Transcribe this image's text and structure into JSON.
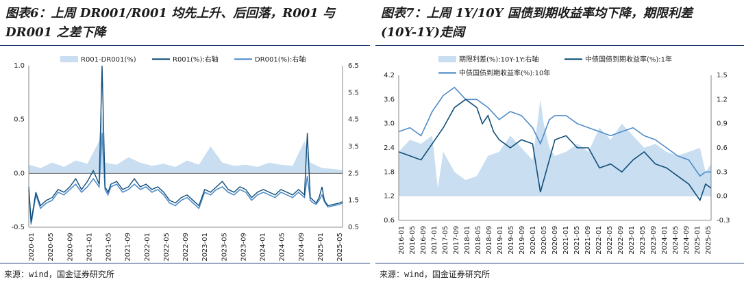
{
  "left": {
    "title_line1": "图表6：上周 DR001/R001 均先上升、后回落，R001 与",
    "title_line2": "DR001 之差下降",
    "source": "来源：wind，国金证券研究所",
    "colors": {
      "spread": "#c9def0",
      "r001": "#0f4d78",
      "dr001": "#4f8cc8"
    },
    "chart_data": {
      "type": "area",
      "series": [
        {
          "name": "R001-DR001(%)",
          "kind": "area",
          "axis": "left"
        },
        {
          "name": "R001(%):右轴",
          "kind": "line",
          "axis": "right"
        },
        {
          "name": "DR001(%):右轴",
          "kind": "line",
          "axis": "right"
        }
      ],
      "x_ticks": [
        "2020-01",
        "2020-05",
        "2020-09",
        "2021-01",
        "2021-05",
        "2021-09",
        "2022-01",
        "2022-05",
        "2022-09",
        "2023-01",
        "2023-05",
        "2023-09",
        "2024-01",
        "2024-05",
        "2024-09",
        "2025-01",
        "2025-05"
      ],
      "y_left": {
        "min": -0.5,
        "max": 1.0,
        "ticks": [
          "1.0",
          "0.5",
          "0.0",
          "-0.5"
        ]
      },
      "y_right": {
        "min": 0.5,
        "max": 6.5,
        "ticks": [
          "6.5",
          "5.5",
          "4.5",
          "3.5",
          "2.5",
          "1.5",
          "0.5"
        ]
      },
      "r001_points": [
        [
          0,
          2.0
        ],
        [
          0.4,
          0.7
        ],
        [
          1.2,
          1.8
        ],
        [
          2,
          1.3
        ],
        [
          3,
          1.5
        ],
        [
          4,
          1.6
        ],
        [
          5,
          1.9
        ],
        [
          6,
          1.8
        ],
        [
          7,
          2.0
        ],
        [
          8,
          2.3
        ],
        [
          9,
          1.9
        ],
        [
          10,
          2.2
        ],
        [
          11,
          2.6
        ],
        [
          12,
          2.1
        ],
        [
          12.5,
          6.5
        ],
        [
          13,
          2.0
        ],
        [
          13.5,
          1.8
        ],
        [
          14,
          2.1
        ],
        [
          15,
          2.2
        ],
        [
          16,
          1.9
        ],
        [
          17,
          2.0
        ],
        [
          18,
          2.3
        ],
        [
          19,
          2.0
        ],
        [
          20,
          2.1
        ],
        [
          21,
          1.9
        ],
        [
          22,
          2.0
        ],
        [
          23,
          1.8
        ],
        [
          24,
          1.5
        ],
        [
          25,
          1.4
        ],
        [
          26,
          1.6
        ],
        [
          27,
          1.7
        ],
        [
          28,
          1.5
        ],
        [
          29,
          1.3
        ],
        [
          30,
          1.9
        ],
        [
          31,
          1.8
        ],
        [
          32,
          2.0
        ],
        [
          33,
          2.2
        ],
        [
          34,
          1.9
        ],
        [
          35,
          1.8
        ],
        [
          36,
          2.0
        ],
        [
          37,
          1.9
        ],
        [
          38,
          1.6
        ],
        [
          39,
          1.8
        ],
        [
          40,
          1.9
        ],
        [
          41,
          1.8
        ],
        [
          42,
          1.7
        ],
        [
          43,
          1.9
        ],
        [
          44,
          1.8
        ],
        [
          45,
          1.7
        ],
        [
          46,
          1.9
        ],
        [
          47,
          1.7
        ],
        [
          47.5,
          4.0
        ],
        [
          48,
          1.6
        ],
        [
          48.5,
          1.5
        ],
        [
          49,
          1.4
        ],
        [
          49.5,
          1.6
        ],
        [
          50,
          2.0
        ],
        [
          50.4,
          1.5
        ],
        [
          51,
          1.3
        ],
        [
          52,
          1.35
        ],
        [
          53,
          1.4
        ],
        [
          53.5,
          1.45
        ]
      ],
      "dr001_points": [
        [
          0,
          1.9
        ],
        [
          0.4,
          0.6
        ],
        [
          1.2,
          1.7
        ],
        [
          2,
          1.2
        ],
        [
          3,
          1.4
        ],
        [
          4,
          1.5
        ],
        [
          5,
          1.8
        ],
        [
          6,
          1.7
        ],
        [
          7,
          1.9
        ],
        [
          8,
          2.1
        ],
        [
          9,
          1.8
        ],
        [
          10,
          2.0
        ],
        [
          11,
          2.3
        ],
        [
          12,
          2.0
        ],
        [
          12.5,
          4.0
        ],
        [
          13,
          1.9
        ],
        [
          13.5,
          1.7
        ],
        [
          14,
          2.0
        ],
        [
          15,
          2.1
        ],
        [
          16,
          1.8
        ],
        [
          17,
          1.9
        ],
        [
          18,
          2.1
        ],
        [
          19,
          1.9
        ],
        [
          20,
          2.0
        ],
        [
          21,
          1.8
        ],
        [
          22,
          1.9
        ],
        [
          23,
          1.7
        ],
        [
          24,
          1.4
        ],
        [
          25,
          1.3
        ],
        [
          26,
          1.5
        ],
        [
          27,
          1.6
        ],
        [
          28,
          1.4
        ],
        [
          29,
          1.2
        ],
        [
          30,
          1.8
        ],
        [
          31,
          1.7
        ],
        [
          32,
          1.9
        ],
        [
          33,
          2.0
        ],
        [
          34,
          1.8
        ],
        [
          35,
          1.7
        ],
        [
          36,
          1.9
        ],
        [
          37,
          1.8
        ],
        [
          38,
          1.5
        ],
        [
          39,
          1.7
        ],
        [
          40,
          1.8
        ],
        [
          41,
          1.7
        ],
        [
          42,
          1.6
        ],
        [
          43,
          1.8
        ],
        [
          44,
          1.7
        ],
        [
          45,
          1.6
        ],
        [
          46,
          1.8
        ],
        [
          47,
          1.6
        ],
        [
          47.5,
          2.4
        ],
        [
          48,
          1.5
        ],
        [
          48.5,
          1.4
        ],
        [
          49,
          1.35
        ],
        [
          49.5,
          1.5
        ],
        [
          50,
          1.7
        ],
        [
          50.4,
          1.45
        ],
        [
          51,
          1.25
        ],
        [
          52,
          1.3
        ],
        [
          53,
          1.35
        ],
        [
          53.5,
          1.4
        ]
      ],
      "spread_points": [
        [
          0,
          0.08
        ],
        [
          2,
          0.05
        ],
        [
          4,
          0.1
        ],
        [
          6,
          0.06
        ],
        [
          8,
          0.12
        ],
        [
          10,
          0.09
        ],
        [
          12,
          0.3
        ],
        [
          12.5,
          0.6
        ],
        [
          13,
          0.1
        ],
        [
          15,
          0.08
        ],
        [
          17,
          0.15
        ],
        [
          19,
          0.1
        ],
        [
          21,
          0.07
        ],
        [
          23,
          0.09
        ],
        [
          25,
          0.06
        ],
        [
          27,
          0.12
        ],
        [
          29,
          0.08
        ],
        [
          31,
          0.25
        ],
        [
          33,
          0.1
        ],
        [
          35,
          0.07
        ],
        [
          37,
          0.08
        ],
        [
          39,
          0.06
        ],
        [
          41,
          0.1
        ],
        [
          43,
          0.08
        ],
        [
          45,
          0.07
        ],
        [
          47,
          0.3
        ],
        [
          48,
          0.1
        ],
        [
          50,
          0.05
        ],
        [
          52,
          0.04
        ],
        [
          53.5,
          0.03
        ]
      ],
      "x_range": [
        0,
        53.5
      ]
    }
  },
  "right": {
    "title_line1": "图表7：上周 1Y/10Y 国债到期收益率均下降，期限利差",
    "title_line2": "(10Y-1Y)走阔",
    "source": "来源：wind，国金证券研究所",
    "colors": {
      "spread": "#c9def0",
      "y1": "#0f4d78",
      "y10": "#4f8cc8"
    },
    "chart_data": {
      "type": "area",
      "series": [
        {
          "name": "期限利差(%):10Y-1Y:右轴",
          "kind": "area",
          "axis": "right"
        },
        {
          "name": "中债国债到期收益率(%):1年",
          "kind": "line",
          "axis": "left"
        },
        {
          "name": "中债国债到期收益率(%):10年",
          "kind": "line",
          "axis": "left"
        }
      ],
      "x_ticks": [
        "2016-01",
        "2016-05",
        "2016-09",
        "2017-01",
        "2017-05",
        "2017-09",
        "2018-01",
        "2018-05",
        "2018-09",
        "2019-01",
        "2019-05",
        "2019-09",
        "2020-01",
        "2020-05",
        "2020-09",
        "2021-01",
        "2021-05",
        "2021-09",
        "2022-01",
        "2022-05",
        "2022-09",
        "2023-01",
        "2023-05",
        "2023-09",
        "2024-01",
        "2024-05",
        "2024-09",
        "2025-01",
        "2025-05"
      ],
      "y_left": {
        "min": 0.6,
        "max": 4.2,
        "ticks": [
          "4.2",
          "3.6",
          "3.0",
          "2.4",
          "1.8",
          "1.2",
          "0.6"
        ]
      },
      "y_right": {
        "min": -0.3,
        "max": 1.5,
        "ticks": [
          "1.5",
          "1.2",
          "0.9",
          "0.6",
          "0.3",
          "0.0",
          "-0.3"
        ]
      },
      "y1_points": [
        [
          0,
          2.3
        ],
        [
          1,
          2.2
        ],
        [
          2,
          2.1
        ],
        [
          3,
          2.5
        ],
        [
          4,
          2.9
        ],
        [
          5,
          3.4
        ],
        [
          6,
          3.6
        ],
        [
          7,
          3.4
        ],
        [
          7.5,
          3.0
        ],
        [
          8,
          3.2
        ],
        [
          8.5,
          2.8
        ],
        [
          9,
          2.6
        ],
        [
          10,
          2.4
        ],
        [
          11,
          2.6
        ],
        [
          12,
          2.5
        ],
        [
          12.7,
          1.3
        ],
        [
          13.2,
          1.8
        ],
        [
          14,
          2.6
        ],
        [
          15,
          2.7
        ],
        [
          16,
          2.4
        ],
        [
          17,
          2.4
        ],
        [
          18,
          1.9
        ],
        [
          19,
          2.0
        ],
        [
          20,
          1.8
        ],
        [
          21,
          2.1
        ],
        [
          22,
          2.3
        ],
        [
          23,
          2.0
        ],
        [
          24,
          1.9
        ],
        [
          25,
          1.7
        ],
        [
          26,
          1.5
        ],
        [
          27,
          1.1
        ],
        [
          27.5,
          1.5
        ],
        [
          28,
          1.4
        ]
      ],
      "y10_points": [
        [
          0,
          2.8
        ],
        [
          1,
          2.9
        ],
        [
          2,
          2.7
        ],
        [
          3,
          3.3
        ],
        [
          4,
          3.7
        ],
        [
          5,
          3.9
        ],
        [
          6,
          3.6
        ],
        [
          7,
          3.6
        ],
        [
          8,
          3.4
        ],
        [
          9,
          3.1
        ],
        [
          10,
          3.3
        ],
        [
          11,
          3.2
        ],
        [
          12,
          2.9
        ],
        [
          12.7,
          2.5
        ],
        [
          13.5,
          3.1
        ],
        [
          14,
          3.2
        ],
        [
          15,
          3.2
        ],
        [
          16,
          3.0
        ],
        [
          17,
          2.9
        ],
        [
          18,
          2.8
        ],
        [
          19,
          2.7
        ],
        [
          20,
          2.8
        ],
        [
          21,
          2.9
        ],
        [
          22,
          2.7
        ],
        [
          23,
          2.6
        ],
        [
          24,
          2.4
        ],
        [
          25,
          2.2
        ],
        [
          26,
          2.1
        ],
        [
          27,
          1.7
        ],
        [
          27.5,
          1.8
        ],
        [
          28,
          1.8
        ]
      ],
      "spread_points": [
        [
          0,
          0.55
        ],
        [
          1,
          0.7
        ],
        [
          2,
          0.65
        ],
        [
          3,
          0.75
        ],
        [
          3.5,
          0.1
        ],
        [
          4,
          0.55
        ],
        [
          5,
          0.3
        ],
        [
          6,
          0.2
        ],
        [
          7,
          0.25
        ],
        [
          8,
          0.5
        ],
        [
          9,
          0.55
        ],
        [
          10,
          0.75
        ],
        [
          11,
          0.6
        ],
        [
          12,
          0.45
        ],
        [
          12.7,
          1.2
        ],
        [
          13,
          0.9
        ],
        [
          13.5,
          0.6
        ],
        [
          14,
          0.5
        ],
        [
          15,
          0.55
        ],
        [
          16,
          0.65
        ],
        [
          17,
          0.55
        ],
        [
          18,
          0.85
        ],
        [
          19,
          0.7
        ],
        [
          20,
          0.9
        ],
        [
          21,
          0.75
        ],
        [
          22,
          0.6
        ],
        [
          23,
          0.65
        ],
        [
          24,
          0.55
        ],
        [
          25,
          0.5
        ],
        [
          26,
          0.55
        ],
        [
          27,
          0.6
        ],
        [
          27.5,
          0.3
        ],
        [
          28,
          0.4
        ]
      ],
      "x_range": [
        0,
        28
      ]
    }
  }
}
